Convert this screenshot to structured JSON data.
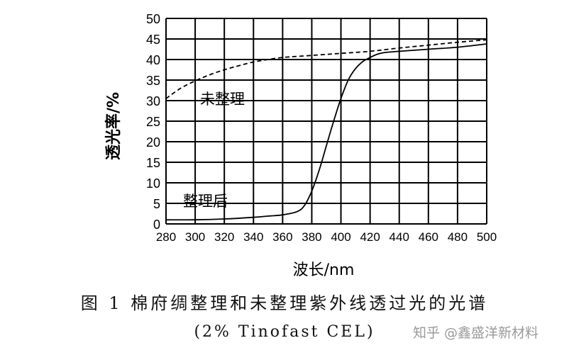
{
  "chart_data": {
    "type": "line",
    "title": "",
    "xlabel": "波长/nm",
    "ylabel": "透光率/%",
    "xlim": [
      280,
      500
    ],
    "ylim": [
      0,
      50
    ],
    "grid": true,
    "x_ticks": [
      "280",
      "300",
      "320",
      "340",
      "360",
      "380",
      "400",
      "420",
      "440",
      "460",
      "480",
      "500"
    ],
    "y_ticks": [
      "0",
      "5",
      "10",
      "15",
      "20",
      "25",
      "30",
      "35",
      "40",
      "45",
      "50"
    ],
    "series": [
      {
        "name": "未整理",
        "style": "dashed",
        "x": [
          280,
          290,
          300,
          310,
          320,
          330,
          340,
          350,
          360,
          380,
          400,
          420,
          440,
          460,
          480,
          500
        ],
        "values": [
          30.5,
          33,
          34.8,
          36.3,
          37.5,
          38.5,
          39.4,
          40.0,
          40.5,
          41.0,
          41.5,
          42.0,
          42.8,
          43.5,
          44.2,
          44.8
        ]
      },
      {
        "name": "整理后",
        "style": "solid",
        "x": [
          280,
          300,
          320,
          340,
          350,
          360,
          370,
          375,
          380,
          385,
          390,
          395,
          400,
          405,
          410,
          415,
          420,
          425,
          430,
          440,
          460,
          480,
          500
        ],
        "values": [
          1.0,
          1.0,
          1.2,
          1.6,
          1.9,
          2.2,
          3.0,
          4.5,
          8.0,
          13.0,
          19.0,
          25.0,
          30.5,
          35.0,
          37.8,
          39.5,
          40.5,
          41.3,
          41.7,
          42.0,
          42.5,
          43.0,
          43.8
        ]
      }
    ],
    "annotations": [
      "未整理",
      "整理后"
    ]
  },
  "caption": {
    "title": "图 1 棉府绸整理和未整理紫外线透过光的光谱",
    "subtitle": "(2% Tinofast CEL)"
  },
  "watermark": "知乎 @鑫盛洋新材料"
}
